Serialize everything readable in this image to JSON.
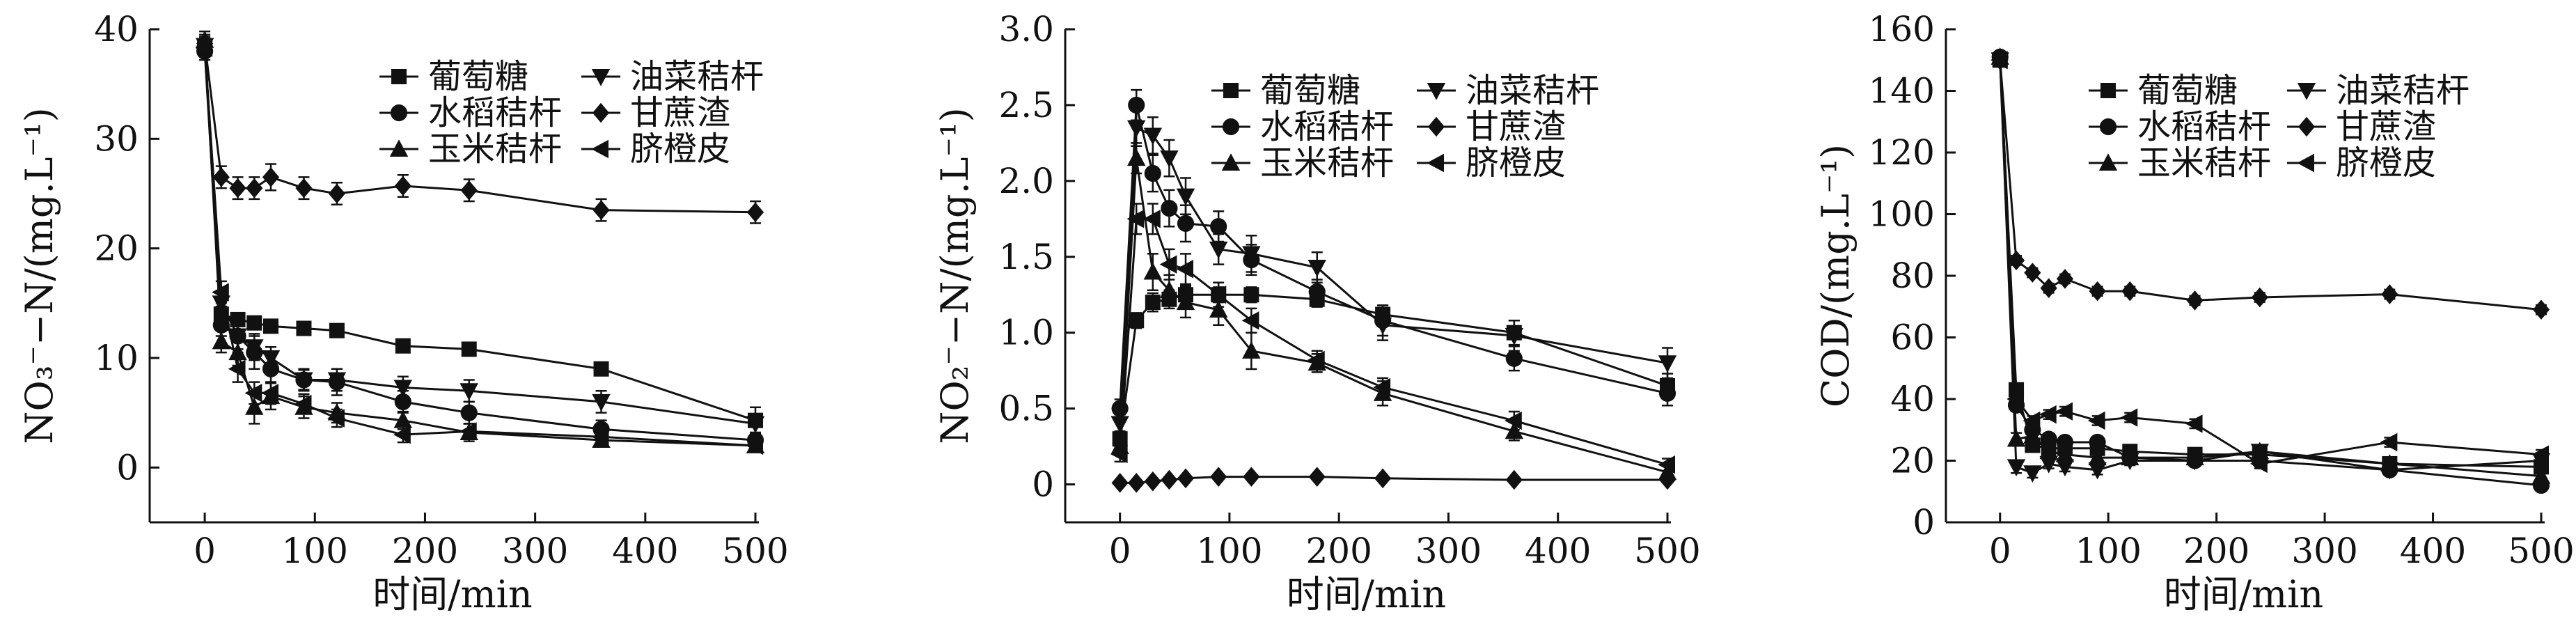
{
  "chart_data": [
    {
      "type": "line",
      "x": [
        0,
        15,
        30,
        45,
        60,
        90,
        120,
        180,
        240,
        360,
        500
      ],
      "xlabel": "时间/min",
      "ylabel": "NO₃⁻−N/(mg.L⁻¹)",
      "xlim": [
        -50,
        500
      ],
      "ylim": [
        -5,
        40
      ],
      "xticks": [
        0,
        100,
        200,
        300,
        400,
        500
      ],
      "yticks": [
        0,
        10,
        20,
        30,
        40
      ],
      "tick_labels_x": [
        "0",
        "100",
        "200",
        "300",
        "400",
        "500"
      ],
      "tick_labels_y": [
        "0",
        "10",
        "20",
        "30",
        "40"
      ],
      "legend_position": "top-right",
      "series": [
        {
          "name": "葡萄糖",
          "marker": "square",
          "values": [
            38.5,
            14.0,
            13.5,
            13.2,
            12.9,
            12.7,
            12.5,
            11.1,
            10.8,
            9.0,
            4.3
          ],
          "errors": [
            0.8,
            0.7,
            0.6,
            0.5,
            0.5,
            0.5,
            0.6,
            0.5,
            0.5,
            0.5,
            1.2
          ]
        },
        {
          "name": "水稻秸杆",
          "marker": "circle",
          "values": [
            38.0,
            13.0,
            12.0,
            10.5,
            9.0,
            8.0,
            7.8,
            6.0,
            5.0,
            3.5,
            2.5
          ],
          "errors": [
            0.8,
            1.0,
            1.5,
            1.5,
            1.2,
            1.0,
            1.2,
            1.0,
            1.0,
            0.8,
            0.6
          ]
        },
        {
          "name": "玉米秸杆",
          "marker": "triangle-up",
          "values": [
            39.0,
            11.5,
            10.5,
            5.5,
            6.5,
            5.5,
            5.0,
            4.3,
            3.2,
            2.5,
            2.0
          ],
          "errors": [
            0.8,
            1.0,
            1.2,
            1.5,
            1.2,
            1.0,
            0.9,
            0.8,
            0.8,
            0.6,
            0.5
          ]
        },
        {
          "name": "油菜秸杆",
          "marker": "triangle-down",
          "values": [
            38.5,
            15.0,
            12.0,
            11.0,
            10.0,
            8.0,
            8.0,
            7.3,
            7.0,
            6.0,
            4.0
          ],
          "errors": [
            0.8,
            1.0,
            1.2,
            1.2,
            1.0,
            0.9,
            1.0,
            1.0,
            1.0,
            1.0,
            0.8
          ]
        },
        {
          "name": "甘蔗渣",
          "marker": "diamond",
          "values": [
            38.7,
            26.5,
            25.5,
            25.5,
            26.5,
            25.5,
            25.0,
            25.7,
            25.3,
            23.5,
            23.3
          ],
          "errors": [
            0.8,
            1.0,
            1.0,
            1.0,
            1.2,
            1.0,
            1.0,
            1.0,
            1.0,
            1.0,
            1.0
          ]
        },
        {
          "name": "脐橙皮",
          "marker": "triangle-left",
          "values": [
            38.3,
            16.0,
            9.0,
            6.8,
            6.8,
            5.8,
            4.5,
            3.0,
            3.3,
            2.8,
            2.0
          ],
          "errors": [
            0.8,
            1.0,
            1.2,
            1.0,
            1.0,
            0.9,
            0.8,
            0.7,
            0.7,
            0.6,
            0.5
          ]
        }
      ]
    },
    {
      "type": "line",
      "x": [
        0,
        15,
        30,
        45,
        60,
        90,
        120,
        180,
        240,
        360,
        500
      ],
      "xlabel": "时间/min",
      "ylabel": "NO₂⁻−N/(mg.L⁻¹)",
      "xlim": [
        -50,
        500
      ],
      "ylim": [
        -0.25,
        3.0
      ],
      "xticks": [
        0,
        100,
        200,
        300,
        400,
        500
      ],
      "yticks": [
        0,
        0.5,
        1.0,
        1.5,
        2.0,
        2.5,
        3.0
      ],
      "tick_labels_x": [
        "0",
        "100",
        "200",
        "300",
        "400",
        "500"
      ],
      "tick_labels_y": [
        "0",
        "0.5",
        "1.0",
        "1.5",
        "2.0",
        "2.5",
        "3.0"
      ],
      "legend_position": "top-right",
      "series": [
        {
          "name": "葡萄糖",
          "marker": "square",
          "values": [
            0.3,
            1.08,
            1.2,
            1.22,
            1.25,
            1.25,
            1.25,
            1.22,
            1.12,
            1.0,
            0.65
          ],
          "errors": [
            0.05,
            0.05,
            0.06,
            0.06,
            0.06,
            0.05,
            0.05,
            0.05,
            0.06,
            0.08,
            0.08
          ]
        },
        {
          "name": "水稻秸杆",
          "marker": "circle",
          "values": [
            0.5,
            2.5,
            2.05,
            1.82,
            1.72,
            1.7,
            1.48,
            1.27,
            1.08,
            0.83,
            0.6
          ],
          "errors": [
            0.06,
            0.1,
            0.12,
            0.12,
            0.12,
            0.1,
            0.1,
            0.08,
            0.1,
            0.08,
            0.08
          ]
        },
        {
          "name": "玉米秸杆",
          "marker": "triangle-up",
          "values": [
            0.25,
            2.15,
            1.4,
            1.28,
            1.2,
            1.15,
            0.88,
            0.8,
            0.6,
            0.35,
            0.08
          ],
          "errors": [
            0.05,
            0.1,
            0.12,
            0.1,
            0.1,
            0.1,
            0.12,
            0.06,
            0.08,
            0.06,
            0.05
          ]
        },
        {
          "name": "油菜秸杆",
          "marker": "triangle-down",
          "values": [
            0.4,
            2.35,
            2.3,
            2.15,
            1.9,
            1.55,
            1.52,
            1.43,
            1.05,
            0.98,
            0.8
          ],
          "errors": [
            0.06,
            0.12,
            0.12,
            0.12,
            0.12,
            0.1,
            0.12,
            0.1,
            0.1,
            0.1,
            0.1
          ]
        },
        {
          "name": "甘蔗渣",
          "marker": "diamond",
          "values": [
            0.01,
            0.01,
            0.02,
            0.03,
            0.04,
            0.05,
            0.05,
            0.05,
            0.04,
            0.03,
            0.03
          ],
          "errors": [
            0.01,
            0.01,
            0.01,
            0.01,
            0.01,
            0.01,
            0.01,
            0.01,
            0.01,
            0.01,
            0.01
          ]
        },
        {
          "name": "脐橙皮",
          "marker": "triangle-left",
          "values": [
            0.2,
            1.75,
            1.75,
            1.45,
            1.42,
            1.25,
            1.08,
            0.82,
            0.64,
            0.42,
            0.13
          ],
          "errors": [
            0.05,
            0.1,
            0.1,
            0.1,
            0.1,
            0.08,
            0.08,
            0.06,
            0.06,
            0.06,
            0.04
          ]
        }
      ]
    },
    {
      "type": "line",
      "x": [
        0,
        15,
        30,
        45,
        60,
        90,
        120,
        180,
        240,
        360,
        500
      ],
      "xlabel": "时间/min",
      "ylabel": "COD/(mg.L⁻¹)",
      "xlim": [
        -50,
        500
      ],
      "ylim": [
        0,
        160
      ],
      "xticks": [
        0,
        100,
        200,
        300,
        400,
        500
      ],
      "yticks": [
        0,
        20,
        40,
        60,
        80,
        100,
        120,
        140,
        160
      ],
      "tick_labels_x": [
        "0",
        "100",
        "200",
        "300",
        "400",
        "500"
      ],
      "tick_labels_y": [
        "0",
        "20",
        "40",
        "60",
        "80",
        "100",
        "120",
        "140",
        "160"
      ],
      "legend_position": "top-right",
      "series": [
        {
          "name": "葡萄糖",
          "marker": "square",
          "values": [
            150,
            43,
            25,
            24,
            24,
            24,
            23,
            22,
            22,
            19,
            18
          ],
          "errors": [
            1.5,
            2,
            1.5,
            1.5,
            1.5,
            1.5,
            1.5,
            1.5,
            1.5,
            1.5,
            1.5
          ]
        },
        {
          "name": "水稻秸杆",
          "marker": "circle",
          "values": [
            151,
            38,
            30,
            27,
            26,
            26,
            21,
            20,
            20,
            17,
            12
          ],
          "errors": [
            1.5,
            2,
            1.5,
            1.5,
            1.5,
            1.5,
            1.5,
            1.5,
            1.5,
            1.5,
            1.5
          ]
        },
        {
          "name": "玉米秸杆",
          "marker": "triangle-up",
          "values": [
            151,
            27,
            28,
            23,
            22,
            21,
            21,
            21,
            23,
            19,
            15
          ],
          "errors": [
            1.5,
            2,
            1.5,
            1.5,
            1.5,
            1.5,
            1.5,
            1.5,
            1.5,
            1.5,
            1.5
          ]
        },
        {
          "name": "油菜秸杆",
          "marker": "triangle-down",
          "values": [
            150,
            18,
            16,
            19,
            18,
            17,
            20,
            20,
            23,
            17,
            20
          ],
          "errors": [
            1.5,
            2,
            1.5,
            1.5,
            1.5,
            1.5,
            1.5,
            1.5,
            1.5,
            1.5,
            1.5
          ]
        },
        {
          "name": "甘蔗渣",
          "marker": "diamond",
          "values": [
            150,
            85,
            81,
            76,
            79,
            75,
            75,
            72,
            73,
            74,
            69
          ],
          "errors": [
            1.5,
            1.5,
            1.5,
            1.5,
            1.5,
            1.5,
            1.5,
            1.5,
            1.5,
            1.5,
            1.5
          ]
        },
        {
          "name": "脐橙皮",
          "marker": "triangle-left",
          "values": [
            150,
            40,
            33,
            35,
            36,
            33,
            34,
            32,
            19,
            26,
            22
          ],
          "errors": [
            1.5,
            2,
            1.5,
            1.5,
            1.5,
            1.5,
            1.5,
            1.5,
            1.5,
            1.5,
            1.5
          ]
        }
      ]
    }
  ]
}
